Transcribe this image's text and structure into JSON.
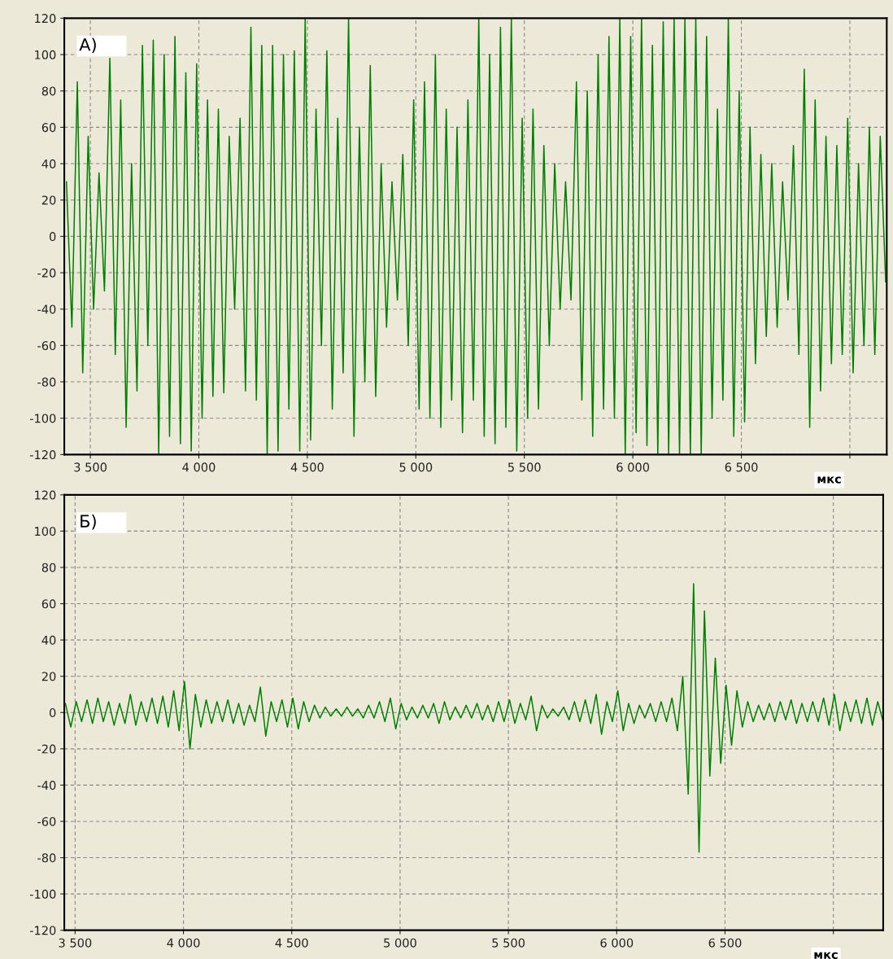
{
  "chart_data": [
    {
      "type": "line",
      "xlabel": "мкс",
      "annotations": [
        "А)"
      ],
      "grid": true,
      "line_style": "solid",
      "marker": "none",
      "xlim": [
        3380,
        7170
      ],
      "ylim": [
        -120,
        120
      ],
      "xticks": [
        {
          "value": 3500,
          "label": "3 500"
        },
        {
          "value": 4000,
          "label": "4 000"
        },
        {
          "value": 4500,
          "label": "4 500"
        },
        {
          "value": 5000,
          "label": "5 000"
        },
        {
          "value": 5500,
          "label": "5 500"
        },
        {
          "value": 6000,
          "label": "6 000"
        },
        {
          "value": 6500,
          "label": "6 500"
        },
        {
          "value": 7000,
          "label": null
        }
      ],
      "yticks": [
        -120,
        -100,
        -80,
        -60,
        -40,
        -20,
        0,
        20,
        40,
        60,
        80,
        100,
        120
      ],
      "series": [
        {
          "color": "#008000",
          "x": [
            3390,
            3415,
            3440,
            3465,
            3490,
            3515,
            3540,
            3565,
            3590,
            3615,
            3640,
            3665,
            3690,
            3715,
            3740,
            3765,
            3790,
            3815,
            3840,
            3865,
            3890,
            3915,
            3940,
            3965,
            3990,
            4015,
            4040,
            4065,
            4090,
            4115,
            4140,
            4165,
            4190,
            4215,
            4240,
            4265,
            4290,
            4315,
            4340,
            4365,
            4390,
            4415,
            4440,
            4465,
            4490,
            4515,
            4540,
            4565,
            4590,
            4615,
            4640,
            4665,
            4690,
            4715,
            4740,
            4765,
            4790,
            4815,
            4840,
            4865,
            4890,
            4915,
            4940,
            4965,
            4990,
            5015,
            5040,
            5065,
            5090,
            5115,
            5140,
            5165,
            5190,
            5215,
            5240,
            5265,
            5290,
            5315,
            5340,
            5365,
            5390,
            5415,
            5440,
            5465,
            5490,
            5515,
            5540,
            5565,
            5590,
            5615,
            5640,
            5665,
            5690,
            5715,
            5740,
            5765,
            5790,
            5815,
            5840,
            5865,
            5890,
            5915,
            5940,
            5965,
            5990,
            6015,
            6040,
            6065,
            6090,
            6115,
            6140,
            6165,
            6190,
            6215,
            6240,
            6265,
            6290,
            6315,
            6340,
            6365,
            6390,
            6415,
            6440,
            6465,
            6490,
            6515,
            6540,
            6565,
            6590,
            6615,
            6640,
            6665,
            6690,
            6715,
            6740,
            6765,
            6790,
            6815,
            6840,
            6865,
            6890,
            6915,
            6940,
            6965,
            6990,
            7015,
            7040,
            7065,
            7090,
            7115,
            7140,
            7165
          ],
          "values": [
            30,
            -50,
            85,
            -75,
            55,
            -40,
            35,
            -30,
            98,
            -65,
            75,
            -105,
            40,
            -85,
            105,
            -60,
            108,
            -120,
            100,
            -110,
            110,
            -114,
            90,
            -118,
            95,
            -100,
            75,
            -88,
            70,
            -86,
            55,
            -40,
            65,
            -85,
            115,
            -90,
            105,
            -120,
            105,
            -118,
            100,
            -95,
            102,
            -118,
            120,
            -112,
            70,
            -60,
            102,
            -95,
            65,
            -75,
            120,
            -110,
            60,
            -80,
            94,
            -88,
            40,
            -50,
            30,
            -35,
            45,
            -60,
            75,
            -95,
            85,
            -100,
            100,
            -105,
            70,
            -90,
            60,
            -108,
            75,
            -90,
            120,
            -110,
            100,
            -114,
            115,
            -105,
            120,
            -118,
            65,
            -100,
            70,
            -95,
            50,
            -60,
            40,
            -40,
            30,
            -35,
            85,
            -90,
            80,
            -110,
            100,
            -95,
            110,
            -100,
            120,
            -120,
            110,
            -108,
            120,
            -115,
            105,
            -120,
            118,
            -120,
            120,
            -120,
            120,
            -120,
            120,
            -120,
            110,
            -100,
            70,
            -90,
            120,
            -110,
            80,
            -102,
            60,
            -70,
            45,
            -55,
            40,
            -50,
            30,
            -35,
            50,
            -65,
            92,
            -105,
            75,
            -85,
            55,
            -70,
            50,
            -65,
            65,
            -75,
            40,
            -60,
            60,
            -65,
            55,
            -25
          ]
        }
      ]
    },
    {
      "type": "line",
      "xlabel": "мкс",
      "annotations": [
        "Б)"
      ],
      "grid": true,
      "line_style": "solid",
      "marker": "none",
      "xlim": [
        3450,
        7230
      ],
      "ylim": [
        -120,
        120
      ],
      "xticks": [
        {
          "value": 3500,
          "label": "3 500"
        },
        {
          "value": 4000,
          "label": "4 000"
        },
        {
          "value": 4500,
          "label": "4 500"
        },
        {
          "value": 5000,
          "label": "5 000"
        },
        {
          "value": 5500,
          "label": "5 500"
        },
        {
          "value": 6000,
          "label": "6 000"
        },
        {
          "value": 6500,
          "label": "6 500"
        },
        {
          "value": 7000,
          "label": null
        }
      ],
      "yticks": [
        -120,
        -100,
        -80,
        -60,
        -40,
        -20,
        0,
        20,
        40,
        60,
        80,
        100,
        120
      ],
      "series": [
        {
          "color": "#008000",
          "x": [
            3455,
            3480,
            3505,
            3530,
            3555,
            3580,
            3605,
            3630,
            3655,
            3680,
            3705,
            3730,
            3755,
            3780,
            3805,
            3830,
            3855,
            3880,
            3905,
            3930,
            3955,
            3980,
            4005,
            4030,
            4055,
            4080,
            4105,
            4130,
            4155,
            4180,
            4205,
            4230,
            4255,
            4280,
            4305,
            4330,
            4355,
            4380,
            4405,
            4430,
            4455,
            4480,
            4505,
            4530,
            4555,
            4580,
            4605,
            4630,
            4655,
            4680,
            4705,
            4730,
            4755,
            4780,
            4805,
            4830,
            4855,
            4880,
            4905,
            4930,
            4955,
            4980,
            5005,
            5030,
            5055,
            5080,
            5105,
            5130,
            5155,
            5180,
            5205,
            5230,
            5255,
            5280,
            5305,
            5330,
            5355,
            5380,
            5405,
            5430,
            5455,
            5480,
            5505,
            5530,
            5555,
            5580,
            5605,
            5630,
            5655,
            5680,
            5705,
            5730,
            5755,
            5780,
            5805,
            5830,
            5855,
            5880,
            5905,
            5930,
            5955,
            5980,
            6005,
            6030,
            6055,
            6080,
            6105,
            6130,
            6155,
            6180,
            6205,
            6230,
            6255,
            6280,
            6305,
            6330,
            6355,
            6380,
            6405,
            6430,
            6455,
            6480,
            6505,
            6530,
            6555,
            6580,
            6605,
            6630,
            6655,
            6680,
            6705,
            6730,
            6755,
            6780,
            6805,
            6830,
            6855,
            6880,
            6905,
            6930,
            6955,
            6980,
            7005,
            7030,
            7055,
            7080,
            7105,
            7130,
            7155,
            7180,
            7205,
            7230
          ],
          "values": [
            5,
            -8,
            6,
            -5,
            7,
            -6,
            8,
            -5,
            6,
            -7,
            5,
            -6,
            10,
            -7,
            6,
            -5,
            8,
            -6,
            9,
            -8,
            12,
            -10,
            17,
            -20,
            10,
            -8,
            7,
            -6,
            6,
            -5,
            7,
            -6,
            5,
            -7,
            4,
            -5,
            14,
            -13,
            6,
            -5,
            7,
            -8,
            8,
            -9,
            6,
            -5,
            4,
            -3,
            3,
            -2,
            2,
            -2,
            3,
            -2,
            2,
            -3,
            4,
            -3,
            6,
            -5,
            8,
            -9,
            5,
            -4,
            3,
            -3,
            4,
            -3,
            5,
            -6,
            6,
            -4,
            3,
            -3,
            4,
            -3,
            5,
            -4,
            4,
            -5,
            6,
            -5,
            7,
            -6,
            5,
            -4,
            9,
            -10,
            4,
            -3,
            2,
            -2,
            3,
            -4,
            6,
            -5,
            7,
            -6,
            10,
            -12,
            6,
            -5,
            12,
            -10,
            5,
            -6,
            4,
            -3,
            5,
            -5,
            6,
            -5,
            8,
            -10,
            20,
            -45,
            71,
            -77,
            56,
            -35,
            30,
            -28,
            15,
            -18,
            12,
            -8,
            6,
            -5,
            4,
            -4,
            5,
            -5,
            6,
            -4,
            7,
            -6,
            5,
            -5,
            6,
            -5,
            8,
            -7,
            10,
            -10,
            6,
            -5,
            7,
            -6,
            8,
            -7,
            6,
            -5
          ]
        }
      ]
    }
  ]
}
